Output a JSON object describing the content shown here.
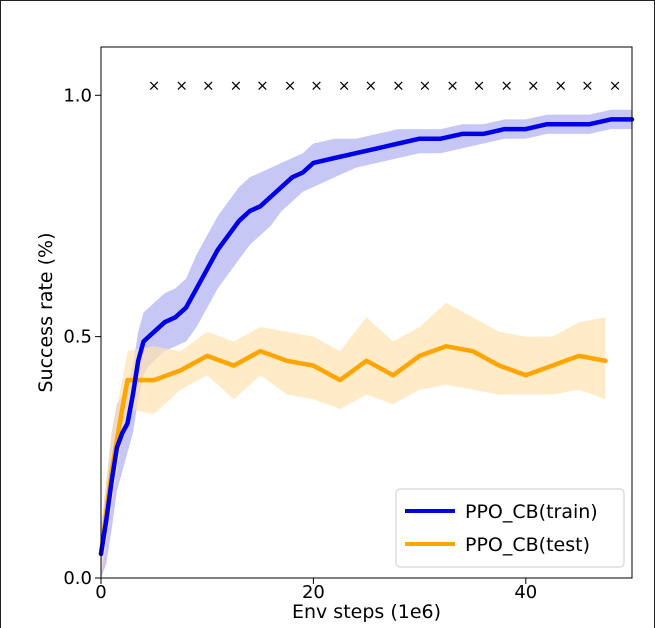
{
  "chart_data": {
    "type": "line",
    "xlabel": "Env steps (1e6)",
    "ylabel": "Success rate (%)",
    "xlim": [
      0,
      50
    ],
    "ylim": [
      0,
      1.1
    ],
    "x_ticks": [
      0,
      20,
      40
    ],
    "y_ticks": [
      0.0,
      0.5,
      1.0
    ],
    "x_tick_labels": [
      "0",
      "20",
      "40"
    ],
    "y_tick_labels": [
      "0.0",
      "0.5",
      "1.0"
    ],
    "legend_position": "lower-right",
    "series": [
      {
        "name": "PPO_CB(train)",
        "color": "#0000e6",
        "band_color": "#9999ee",
        "x": [
          0,
          0.5,
          1,
          1.5,
          2,
          2.5,
          3,
          3.5,
          4,
          4.5,
          5,
          6,
          7,
          8,
          9,
          10,
          11,
          12,
          13,
          14,
          15,
          16,
          17,
          18,
          19,
          20,
          22,
          24,
          26,
          28,
          30,
          32,
          34,
          36,
          38,
          40,
          42,
          44,
          46,
          48,
          50
        ],
        "y": [
          0.05,
          0.12,
          0.2,
          0.27,
          0.3,
          0.32,
          0.38,
          0.45,
          0.49,
          0.5,
          0.51,
          0.53,
          0.54,
          0.56,
          0.6,
          0.64,
          0.68,
          0.71,
          0.74,
          0.76,
          0.77,
          0.79,
          0.81,
          0.83,
          0.84,
          0.86,
          0.87,
          0.88,
          0.89,
          0.9,
          0.91,
          0.91,
          0.92,
          0.92,
          0.93,
          0.93,
          0.94,
          0.94,
          0.94,
          0.95,
          0.95
        ],
        "lower": [
          0.0,
          0.03,
          0.1,
          0.18,
          0.22,
          0.26,
          0.3,
          0.37,
          0.42,
          0.44,
          0.45,
          0.47,
          0.48,
          0.49,
          0.52,
          0.56,
          0.6,
          0.63,
          0.66,
          0.69,
          0.71,
          0.73,
          0.76,
          0.78,
          0.8,
          0.81,
          0.83,
          0.85,
          0.86,
          0.87,
          0.88,
          0.88,
          0.89,
          0.9,
          0.91,
          0.91,
          0.92,
          0.92,
          0.92,
          0.93,
          0.93
        ],
        "upper": [
          0.1,
          0.2,
          0.3,
          0.36,
          0.38,
          0.39,
          0.44,
          0.51,
          0.55,
          0.56,
          0.57,
          0.59,
          0.6,
          0.62,
          0.67,
          0.71,
          0.75,
          0.78,
          0.81,
          0.83,
          0.84,
          0.85,
          0.86,
          0.87,
          0.88,
          0.9,
          0.91,
          0.91,
          0.92,
          0.93,
          0.93,
          0.93,
          0.94,
          0.94,
          0.95,
          0.95,
          0.96,
          0.96,
          0.96,
          0.97,
          0.97
        ]
      },
      {
        "name": "PPO_CB(test)",
        "color": "#ffa500",
        "band_color": "#ffe2b0",
        "x": [
          0,
          1,
          2,
          2.5,
          5,
          7.5,
          10,
          12.5,
          15,
          17.5,
          20,
          22.5,
          25,
          27.5,
          30,
          32.5,
          35,
          37.5,
          40,
          42.5,
          45,
          47.5
        ],
        "y": [
          0.05,
          0.22,
          0.35,
          0.41,
          0.41,
          0.43,
          0.46,
          0.44,
          0.47,
          0.45,
          0.44,
          0.41,
          0.45,
          0.42,
          0.46,
          0.48,
          0.47,
          0.44,
          0.42,
          0.44,
          0.46,
          0.45
        ],
        "lower": [
          0.0,
          0.15,
          0.29,
          0.35,
          0.34,
          0.39,
          0.42,
          0.37,
          0.42,
          0.38,
          0.37,
          0.35,
          0.38,
          0.36,
          0.39,
          0.4,
          0.39,
          0.38,
          0.38,
          0.38,
          0.39,
          0.37
        ],
        "upper": [
          0.1,
          0.3,
          0.41,
          0.47,
          0.48,
          0.47,
          0.51,
          0.49,
          0.52,
          0.51,
          0.5,
          0.47,
          0.54,
          0.49,
          0.52,
          0.57,
          0.54,
          0.51,
          0.5,
          0.5,
          0.53,
          0.54
        ]
      }
    ],
    "markers": {
      "symbol": "×",
      "y": 1.02,
      "x": [
        5,
        7.6,
        10.1,
        12.7,
        15.2,
        17.8,
        20.3,
        22.9,
        25.4,
        28,
        30.5,
        33.1,
        35.6,
        38.2,
        40.7,
        43.3,
        45.8,
        48.4
      ]
    }
  }
}
